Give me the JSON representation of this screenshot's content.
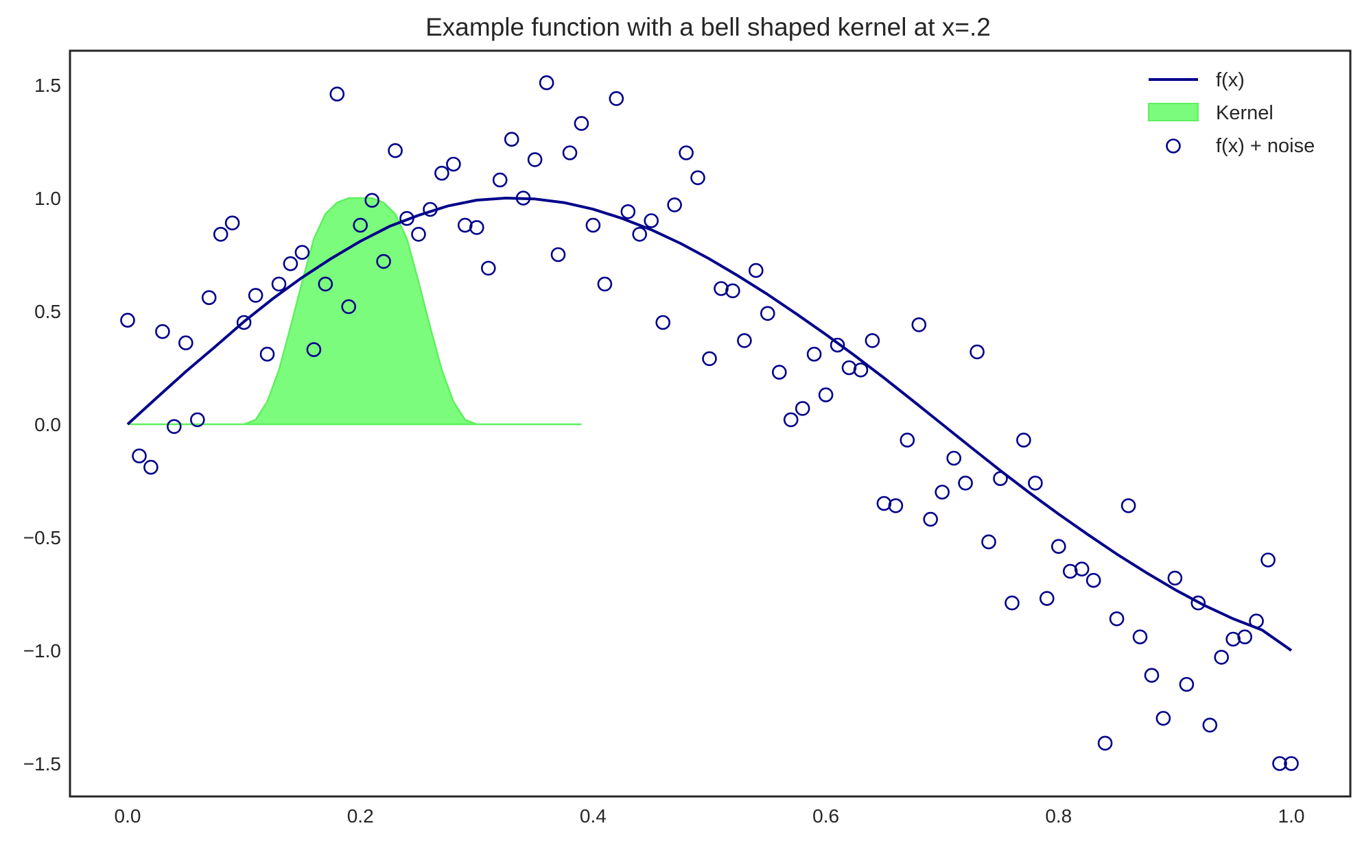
{
  "chart_data": {
    "type": "line",
    "title": "Example function with a bell shaped kernel at x=.2",
    "xlabel": "",
    "ylabel": "",
    "xlim": [
      -0.05,
      1.05
    ],
    "ylim": [
      -1.65,
      1.65
    ],
    "x_ticks": [
      0.0,
      0.2,
      0.4,
      0.6,
      0.8,
      1.0
    ],
    "x_tick_labels": [
      "0.0",
      "0.2",
      "0.4",
      "0.6",
      "0.8",
      "1.0"
    ],
    "y_ticks": [
      1.5,
      1.0,
      0.5,
      0.0,
      -0.5,
      -1.0,
      -1.5
    ],
    "y_tick_labels": [
      "1.5",
      "1.0",
      "0.5",
      "0.0",
      "−0.5",
      "−1.0",
      "−1.5"
    ],
    "grid": false,
    "legend_position": "top-right",
    "legend": [
      "f(x)",
      "Kernel",
      "f(x) + noise"
    ],
    "colors": {
      "line": "#00008b",
      "kernel_fill": "#7cfc7c",
      "kernel_edge": "#5ef05e",
      "points": "#00008b",
      "frame": "#262626"
    },
    "series": [
      {
        "name": "f(x)",
        "kind": "line",
        "x": [
          0.0,
          0.025,
          0.05,
          0.075,
          0.1,
          0.125,
          0.15,
          0.175,
          0.2,
          0.225,
          0.25,
          0.275,
          0.3,
          0.325,
          0.35,
          0.375,
          0.4,
          0.425,
          0.45,
          0.475,
          0.5,
          0.525,
          0.55,
          0.575,
          0.6,
          0.625,
          0.65,
          0.675,
          0.7,
          0.725,
          0.75,
          0.775,
          0.8,
          0.825,
          0.85,
          0.875,
          0.9,
          0.925,
          0.95,
          0.975,
          1.0
        ],
        "y": [
          0.0,
          0.117,
          0.233,
          0.342,
          0.454,
          0.556,
          0.649,
          0.733,
          0.809,
          0.875,
          0.924,
          0.965,
          0.991,
          1.0,
          0.996,
          0.98,
          0.951,
          0.91,
          0.86,
          0.8,
          0.731,
          0.655,
          0.574,
          0.487,
          0.397,
          0.303,
          0.205,
          0.103,
          0.0,
          -0.103,
          -0.205,
          -0.303,
          -0.397,
          -0.487,
          -0.574,
          -0.655,
          -0.731,
          -0.8,
          -0.86,
          -0.91,
          -1.0
        ]
      },
      {
        "name": "Kernel",
        "kind": "area",
        "x": [
          0.0,
          0.1,
          0.11,
          0.12,
          0.13,
          0.14,
          0.15,
          0.16,
          0.17,
          0.18,
          0.19,
          0.2,
          0.21,
          0.22,
          0.23,
          0.24,
          0.25,
          0.26,
          0.27,
          0.28,
          0.29,
          0.3,
          0.39
        ],
        "y": [
          0.0,
          0.0,
          0.02,
          0.1,
          0.24,
          0.43,
          0.63,
          0.82,
          0.93,
          0.98,
          1.0,
          1.0,
          1.0,
          0.98,
          0.93,
          0.82,
          0.63,
          0.43,
          0.24,
          0.1,
          0.02,
          0.0,
          0.0
        ]
      },
      {
        "name": "f(x) + noise",
        "kind": "scatter",
        "x": [
          0.0,
          0.01,
          0.02,
          0.03,
          0.04,
          0.05,
          0.06,
          0.07,
          0.08,
          0.09,
          0.1,
          0.11,
          0.12,
          0.13,
          0.14,
          0.15,
          0.16,
          0.17,
          0.18,
          0.19,
          0.2,
          0.21,
          0.22,
          0.23,
          0.24,
          0.25,
          0.26,
          0.27,
          0.28,
          0.29,
          0.3,
          0.31,
          0.32,
          0.33,
          0.34,
          0.35,
          0.36,
          0.37,
          0.38,
          0.39,
          0.4,
          0.41,
          0.42,
          0.43,
          0.44,
          0.45,
          0.46,
          0.47,
          0.48,
          0.49,
          0.5,
          0.51,
          0.52,
          0.53,
          0.54,
          0.55,
          0.56,
          0.57,
          0.58,
          0.59,
          0.6,
          0.61,
          0.62,
          0.63,
          0.64,
          0.65,
          0.66,
          0.67,
          0.68,
          0.69,
          0.7,
          0.71,
          0.72,
          0.73,
          0.74,
          0.75,
          0.76,
          0.77,
          0.78,
          0.79,
          0.8,
          0.81,
          0.82,
          0.83,
          0.84,
          0.85,
          0.86,
          0.87,
          0.88,
          0.89,
          0.9,
          0.91,
          0.92,
          0.93,
          0.94,
          0.95,
          0.96,
          0.97,
          0.98,
          0.99,
          1.0
        ],
        "y": [
          0.46,
          -0.14,
          -0.19,
          0.41,
          -0.01,
          0.36,
          0.02,
          0.56,
          0.84,
          0.89,
          0.45,
          0.57,
          0.31,
          0.62,
          0.71,
          0.76,
          0.33,
          0.62,
          1.46,
          0.52,
          0.88,
          0.99,
          0.72,
          1.21,
          0.91,
          0.84,
          0.95,
          1.11,
          1.15,
          0.88,
          0.87,
          0.69,
          1.08,
          1.26,
          1.0,
          1.17,
          1.51,
          0.75,
          1.2,
          1.33,
          0.88,
          0.62,
          1.44,
          0.94,
          0.84,
          0.9,
          0.45,
          0.97,
          1.2,
          1.09,
          0.29,
          0.6,
          0.59,
          0.37,
          0.68,
          0.49,
          0.23,
          0.02,
          0.07,
          0.31,
          0.13,
          0.35,
          0.25,
          0.24,
          0.37,
          -0.35,
          -0.36,
          -0.07,
          0.44,
          -0.42,
          -0.3,
          -0.15,
          -0.26,
          0.32,
          -0.52,
          -0.24,
          -0.79,
          -0.07,
          -0.26,
          -0.77,
          -0.54,
          -0.65,
          -0.64,
          -0.69,
          -1.41,
          -0.86,
          -0.36,
          -0.94,
          -1.11,
          -1.3,
          -0.68,
          -1.15,
          -0.79,
          -1.33,
          -1.03,
          -0.95,
          -0.94,
          -0.87,
          -0.6,
          -1.5,
          -1.5
        ]
      }
    ]
  }
}
